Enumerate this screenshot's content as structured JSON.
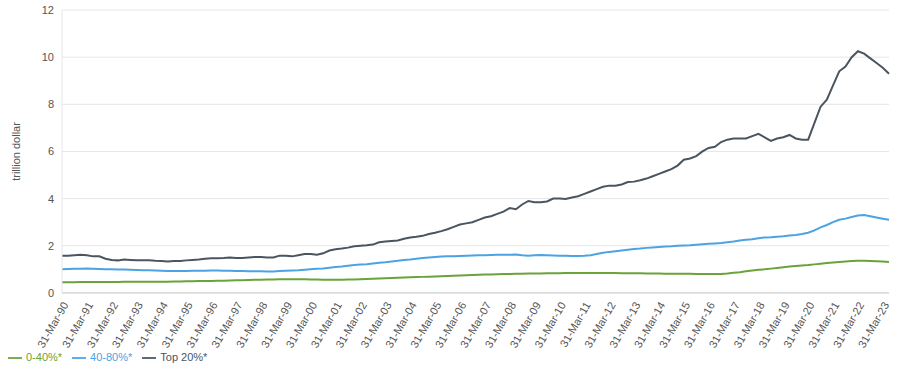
{
  "chart_data": {
    "type": "line",
    "y_label": "trillion dollar",
    "ylim": [
      0,
      12
    ],
    "yticks": [
      0,
      2,
      4,
      6,
      8,
      10,
      12
    ],
    "grid": true,
    "legend": "bottom-left",
    "categories": [
      "31-Mar-90",
      null,
      null,
      null,
      "31-Mar-91",
      null,
      null,
      null,
      "31-Mar-92",
      null,
      null,
      null,
      "31-Mar-93",
      null,
      null,
      null,
      "31-Mar-94",
      null,
      null,
      null,
      "31-Mar-95",
      null,
      null,
      null,
      "31-Mar-96",
      null,
      null,
      null,
      "31-Mar-97",
      null,
      null,
      null,
      "31-Mar-98",
      null,
      null,
      null,
      "31-Mar-99",
      null,
      null,
      null,
      "31-Mar-00",
      null,
      null,
      null,
      "31-Mar-01",
      null,
      null,
      null,
      "31-Mar-02",
      null,
      null,
      null,
      "31-Mar-03",
      null,
      null,
      null,
      "31-Mar-04",
      null,
      null,
      null,
      "31-Mar-05",
      null,
      null,
      null,
      "31-Mar-06",
      null,
      null,
      null,
      "31-Mar-07",
      null,
      null,
      null,
      "31-Mar-08",
      null,
      null,
      null,
      "31-Mar-09",
      null,
      null,
      null,
      "31-Mar-10",
      null,
      null,
      null,
      "31-Mar-11",
      null,
      null,
      null,
      "31-Mar-12",
      null,
      null,
      null,
      "31-Mar-13",
      null,
      null,
      null,
      "31-Mar-14",
      null,
      null,
      null,
      "31-Mar-15",
      null,
      null,
      null,
      "31-Mar-16",
      null,
      null,
      null,
      "31-Mar-17",
      null,
      null,
      null,
      "31-Mar-18",
      null,
      null,
      null,
      "31-Mar-19",
      null,
      null,
      null,
      "31-Mar-20",
      null,
      null,
      null,
      "31-Mar-21",
      null,
      null,
      null,
      "31-Mar-22",
      null,
      null,
      null,
      "31-Mar-23",
      null
    ],
    "series": [
      {
        "name": "0-40%*",
        "color": "#6aa338",
        "values": [
          0.45,
          0.45,
          0.45,
          0.46,
          0.46,
          0.46,
          0.46,
          0.46,
          0.46,
          0.46,
          0.47,
          0.47,
          0.47,
          0.47,
          0.47,
          0.47,
          0.47,
          0.47,
          0.48,
          0.48,
          0.49,
          0.49,
          0.5,
          0.5,
          0.51,
          0.52,
          0.52,
          0.53,
          0.54,
          0.54,
          0.55,
          0.56,
          0.56,
          0.57,
          0.57,
          0.58,
          0.58,
          0.58,
          0.58,
          0.58,
          0.57,
          0.57,
          0.56,
          0.56,
          0.56,
          0.56,
          0.57,
          0.57,
          0.58,
          0.59,
          0.6,
          0.61,
          0.62,
          0.63,
          0.64,
          0.65,
          0.66,
          0.67,
          0.68,
          0.69,
          0.7,
          0.71,
          0.72,
          0.73,
          0.74,
          0.75,
          0.76,
          0.77,
          0.78,
          0.78,
          0.79,
          0.8,
          0.8,
          0.81,
          0.81,
          0.82,
          0.82,
          0.82,
          0.83,
          0.83,
          0.83,
          0.84,
          0.84,
          0.84,
          0.84,
          0.84,
          0.84,
          0.84,
          0.84,
          0.84,
          0.83,
          0.83,
          0.83,
          0.83,
          0.82,
          0.82,
          0.82,
          0.81,
          0.81,
          0.81,
          0.81,
          0.81,
          0.8,
          0.8,
          0.8,
          0.8,
          0.8,
          0.82,
          0.85,
          0.88,
          0.92,
          0.95,
          0.98,
          1.0,
          1.03,
          1.06,
          1.09,
          1.12,
          1.14,
          1.16,
          1.18,
          1.21,
          1.24,
          1.27,
          1.29,
          1.31,
          1.33,
          1.35,
          1.36,
          1.36,
          1.35,
          1.34,
          1.33,
          1.31
        ]
      },
      {
        "name": "40-80%*",
        "color": "#4ba3e3",
        "values": [
          1.0,
          1.01,
          1.02,
          1.02,
          1.03,
          1.02,
          1.01,
          1.0,
          1.0,
          0.99,
          0.99,
          0.98,
          0.97,
          0.96,
          0.96,
          0.95,
          0.94,
          0.93,
          0.93,
          0.93,
          0.93,
          0.94,
          0.94,
          0.94,
          0.95,
          0.95,
          0.94,
          0.94,
          0.93,
          0.93,
          0.92,
          0.92,
          0.92,
          0.91,
          0.91,
          0.93,
          0.94,
          0.95,
          0.96,
          0.98,
          1.0,
          1.02,
          1.04,
          1.07,
          1.1,
          1.12,
          1.15,
          1.18,
          1.2,
          1.22,
          1.25,
          1.28,
          1.3,
          1.33,
          1.36,
          1.4,
          1.42,
          1.45,
          1.48,
          1.5,
          1.52,
          1.54,
          1.55,
          1.56,
          1.57,
          1.58,
          1.59,
          1.6,
          1.6,
          1.61,
          1.62,
          1.62,
          1.62,
          1.63,
          1.6,
          1.58,
          1.6,
          1.61,
          1.6,
          1.59,
          1.58,
          1.58,
          1.57,
          1.57,
          1.58,
          1.6,
          1.65,
          1.7,
          1.74,
          1.77,
          1.8,
          1.83,
          1.86,
          1.88,
          1.91,
          1.93,
          1.95,
          1.97,
          1.98,
          2.0,
          2.01,
          2.02,
          2.04,
          2.06,
          2.08,
          2.1,
          2.12,
          2.15,
          2.18,
          2.22,
          2.25,
          2.28,
          2.32,
          2.35,
          2.36,
          2.38,
          2.4,
          2.43,
          2.46,
          2.5,
          2.55,
          2.65,
          2.78,
          2.88,
          3.0,
          3.1,
          3.15,
          3.22,
          3.28,
          3.3,
          3.25,
          3.2,
          3.15,
          3.1
        ]
      },
      {
        "name": "Top 20%*",
        "color": "#4a5560",
        "values": [
          1.58,
          1.58,
          1.6,
          1.62,
          1.6,
          1.55,
          1.55,
          1.45,
          1.4,
          1.38,
          1.42,
          1.4,
          1.38,
          1.38,
          1.38,
          1.36,
          1.35,
          1.33,
          1.35,
          1.35,
          1.38,
          1.4,
          1.42,
          1.45,
          1.47,
          1.47,
          1.48,
          1.5,
          1.48,
          1.48,
          1.5,
          1.52,
          1.52,
          1.5,
          1.5,
          1.58,
          1.58,
          1.55,
          1.6,
          1.65,
          1.65,
          1.62,
          1.68,
          1.8,
          1.85,
          1.88,
          1.92,
          1.98,
          2.0,
          2.02,
          2.05,
          2.15,
          2.18,
          2.2,
          2.22,
          2.3,
          2.35,
          2.38,
          2.42,
          2.5,
          2.55,
          2.62,
          2.7,
          2.8,
          2.9,
          2.95,
          3.0,
          3.1,
          3.2,
          3.25,
          3.35,
          3.45,
          3.6,
          3.55,
          3.75,
          3.9,
          3.85,
          3.85,
          3.88,
          4.0,
          4.0,
          3.98,
          4.05,
          4.1,
          4.2,
          4.3,
          4.4,
          4.5,
          4.55,
          4.55,
          4.6,
          4.7,
          4.72,
          4.78,
          4.85,
          4.95,
          5.05,
          5.15,
          5.25,
          5.4,
          5.65,
          5.7,
          5.8,
          6.0,
          6.15,
          6.2,
          6.4,
          6.5,
          6.55,
          6.55,
          6.55,
          6.65,
          6.75,
          6.6,
          6.45,
          6.55,
          6.6,
          6.7,
          6.55,
          6.5,
          6.5,
          7.2,
          7.9,
          8.2,
          8.8,
          9.4,
          9.6,
          10.0,
          10.25,
          10.15,
          9.95,
          9.75,
          9.55,
          9.3
        ]
      }
    ]
  }
}
